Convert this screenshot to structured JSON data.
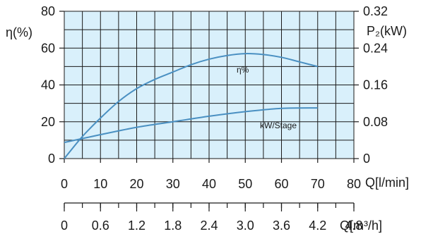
{
  "chart_data": {
    "type": "line",
    "title": "",
    "grid": true,
    "x": [
      0,
      10,
      20,
      30,
      40,
      50,
      60,
      70
    ],
    "xlim": [
      0,
      80
    ],
    "xlabel": "Q[l/min]",
    "x_ticks": [
      "0",
      "10",
      "20",
      "30",
      "40",
      "50",
      "60",
      "70",
      "80"
    ],
    "x2label": "Q[m³/h]",
    "x2_ticks": [
      {
        "q": 0,
        "label": "0"
      },
      {
        "q": 10,
        "label": "0.6"
      },
      {
        "q": 20,
        "label": "1.2"
      },
      {
        "q": 30,
        "label": "1.8"
      },
      {
        "q": 40,
        "label": "2.4"
      },
      {
        "q": 50,
        "label": "3.0"
      },
      {
        "q": 60,
        "label": "3.6"
      },
      {
        "q": 70,
        "label": "4.2"
      },
      {
        "q": 80,
        "label": "4.8"
      }
    ],
    "ylim_left": [
      0,
      80
    ],
    "ylabel_left": "η(%)",
    "y_left_ticks": [
      "0",
      "20",
      "40",
      "60",
      "80"
    ],
    "ylim_right": [
      0,
      0.32
    ],
    "ylabel_right": "P₂(kW)",
    "y_right_ticks": [
      "0",
      "0.08",
      "0.16",
      "0.24",
      "0.32"
    ],
    "series": [
      {
        "name": "η%",
        "axis": "left",
        "x": [
          0,
          5,
          10,
          15,
          20,
          25,
          30,
          35,
          40,
          45,
          50,
          55,
          60,
          65,
          70
        ],
        "values": [
          0,
          12,
          22,
          31,
          38,
          43,
          47,
          51,
          54,
          56,
          57,
          56.5,
          55,
          52.5,
          50
        ]
      },
      {
        "name": "kW/Stage",
        "axis": "right",
        "x": [
          0,
          10,
          20,
          30,
          40,
          50,
          60,
          70
        ],
        "values": [
          0.035,
          0.052,
          0.068,
          0.08,
          0.092,
          0.102,
          0.109,
          0.11
        ]
      }
    ],
    "colors": {
      "background": "#d9f0fb",
      "grid": "#1a1a1a",
      "curve": "#4a90c2",
      "text": "#1a1a1a"
    }
  }
}
